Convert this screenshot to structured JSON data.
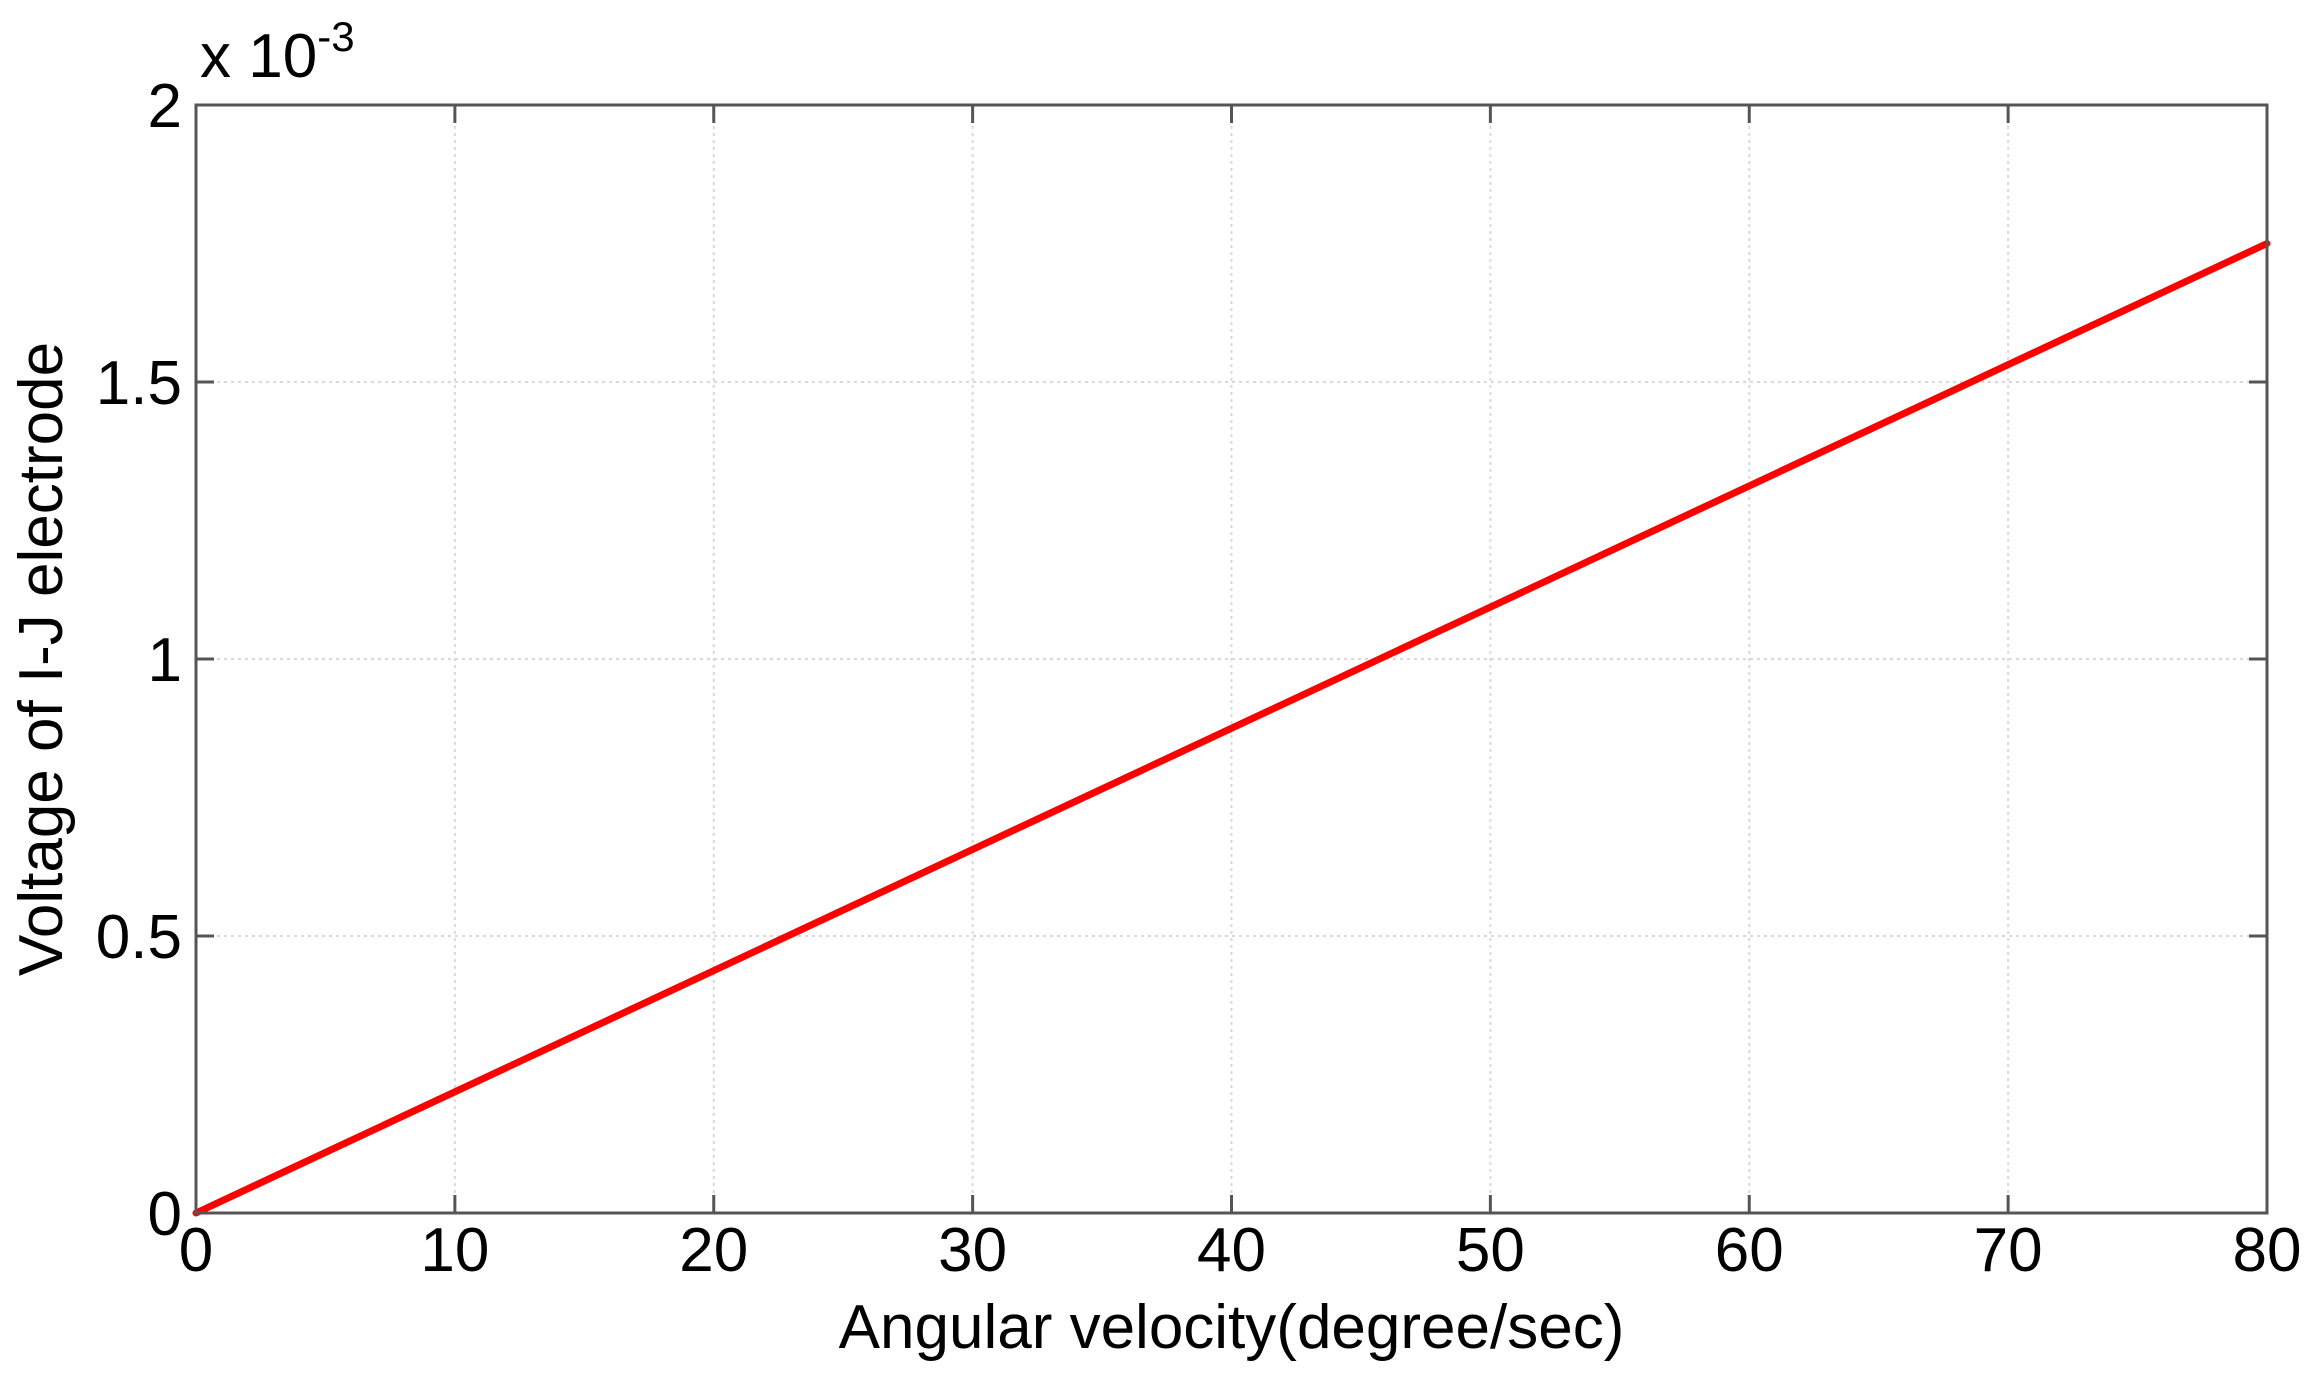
{
  "chart_data": {
    "type": "line",
    "title": "",
    "xlabel": "Angular velocity(degree/sec)",
    "ylabel": "Voltage of I-J electrode",
    "y_exponent_label": {
      "base": "x 10",
      "exponent": "-3"
    },
    "xlim": [
      0,
      80
    ],
    "ylim": [
      0,
      2
    ],
    "x_ticks": [
      0,
      10,
      20,
      30,
      40,
      50,
      60,
      70,
      80
    ],
    "x_tick_labels": [
      "0",
      "10",
      "20",
      "30",
      "40",
      "50",
      "60",
      "70",
      "80"
    ],
    "y_ticks": [
      0,
      0.5,
      1,
      1.5,
      2
    ],
    "y_tick_labels": [
      "0",
      "0.5",
      "1",
      "1.5",
      "2"
    ],
    "grid": true,
    "series": [
      {
        "color": "#ff0000",
        "x": [
          0,
          80
        ],
        "y": [
          0,
          1.75
        ]
      }
    ]
  }
}
